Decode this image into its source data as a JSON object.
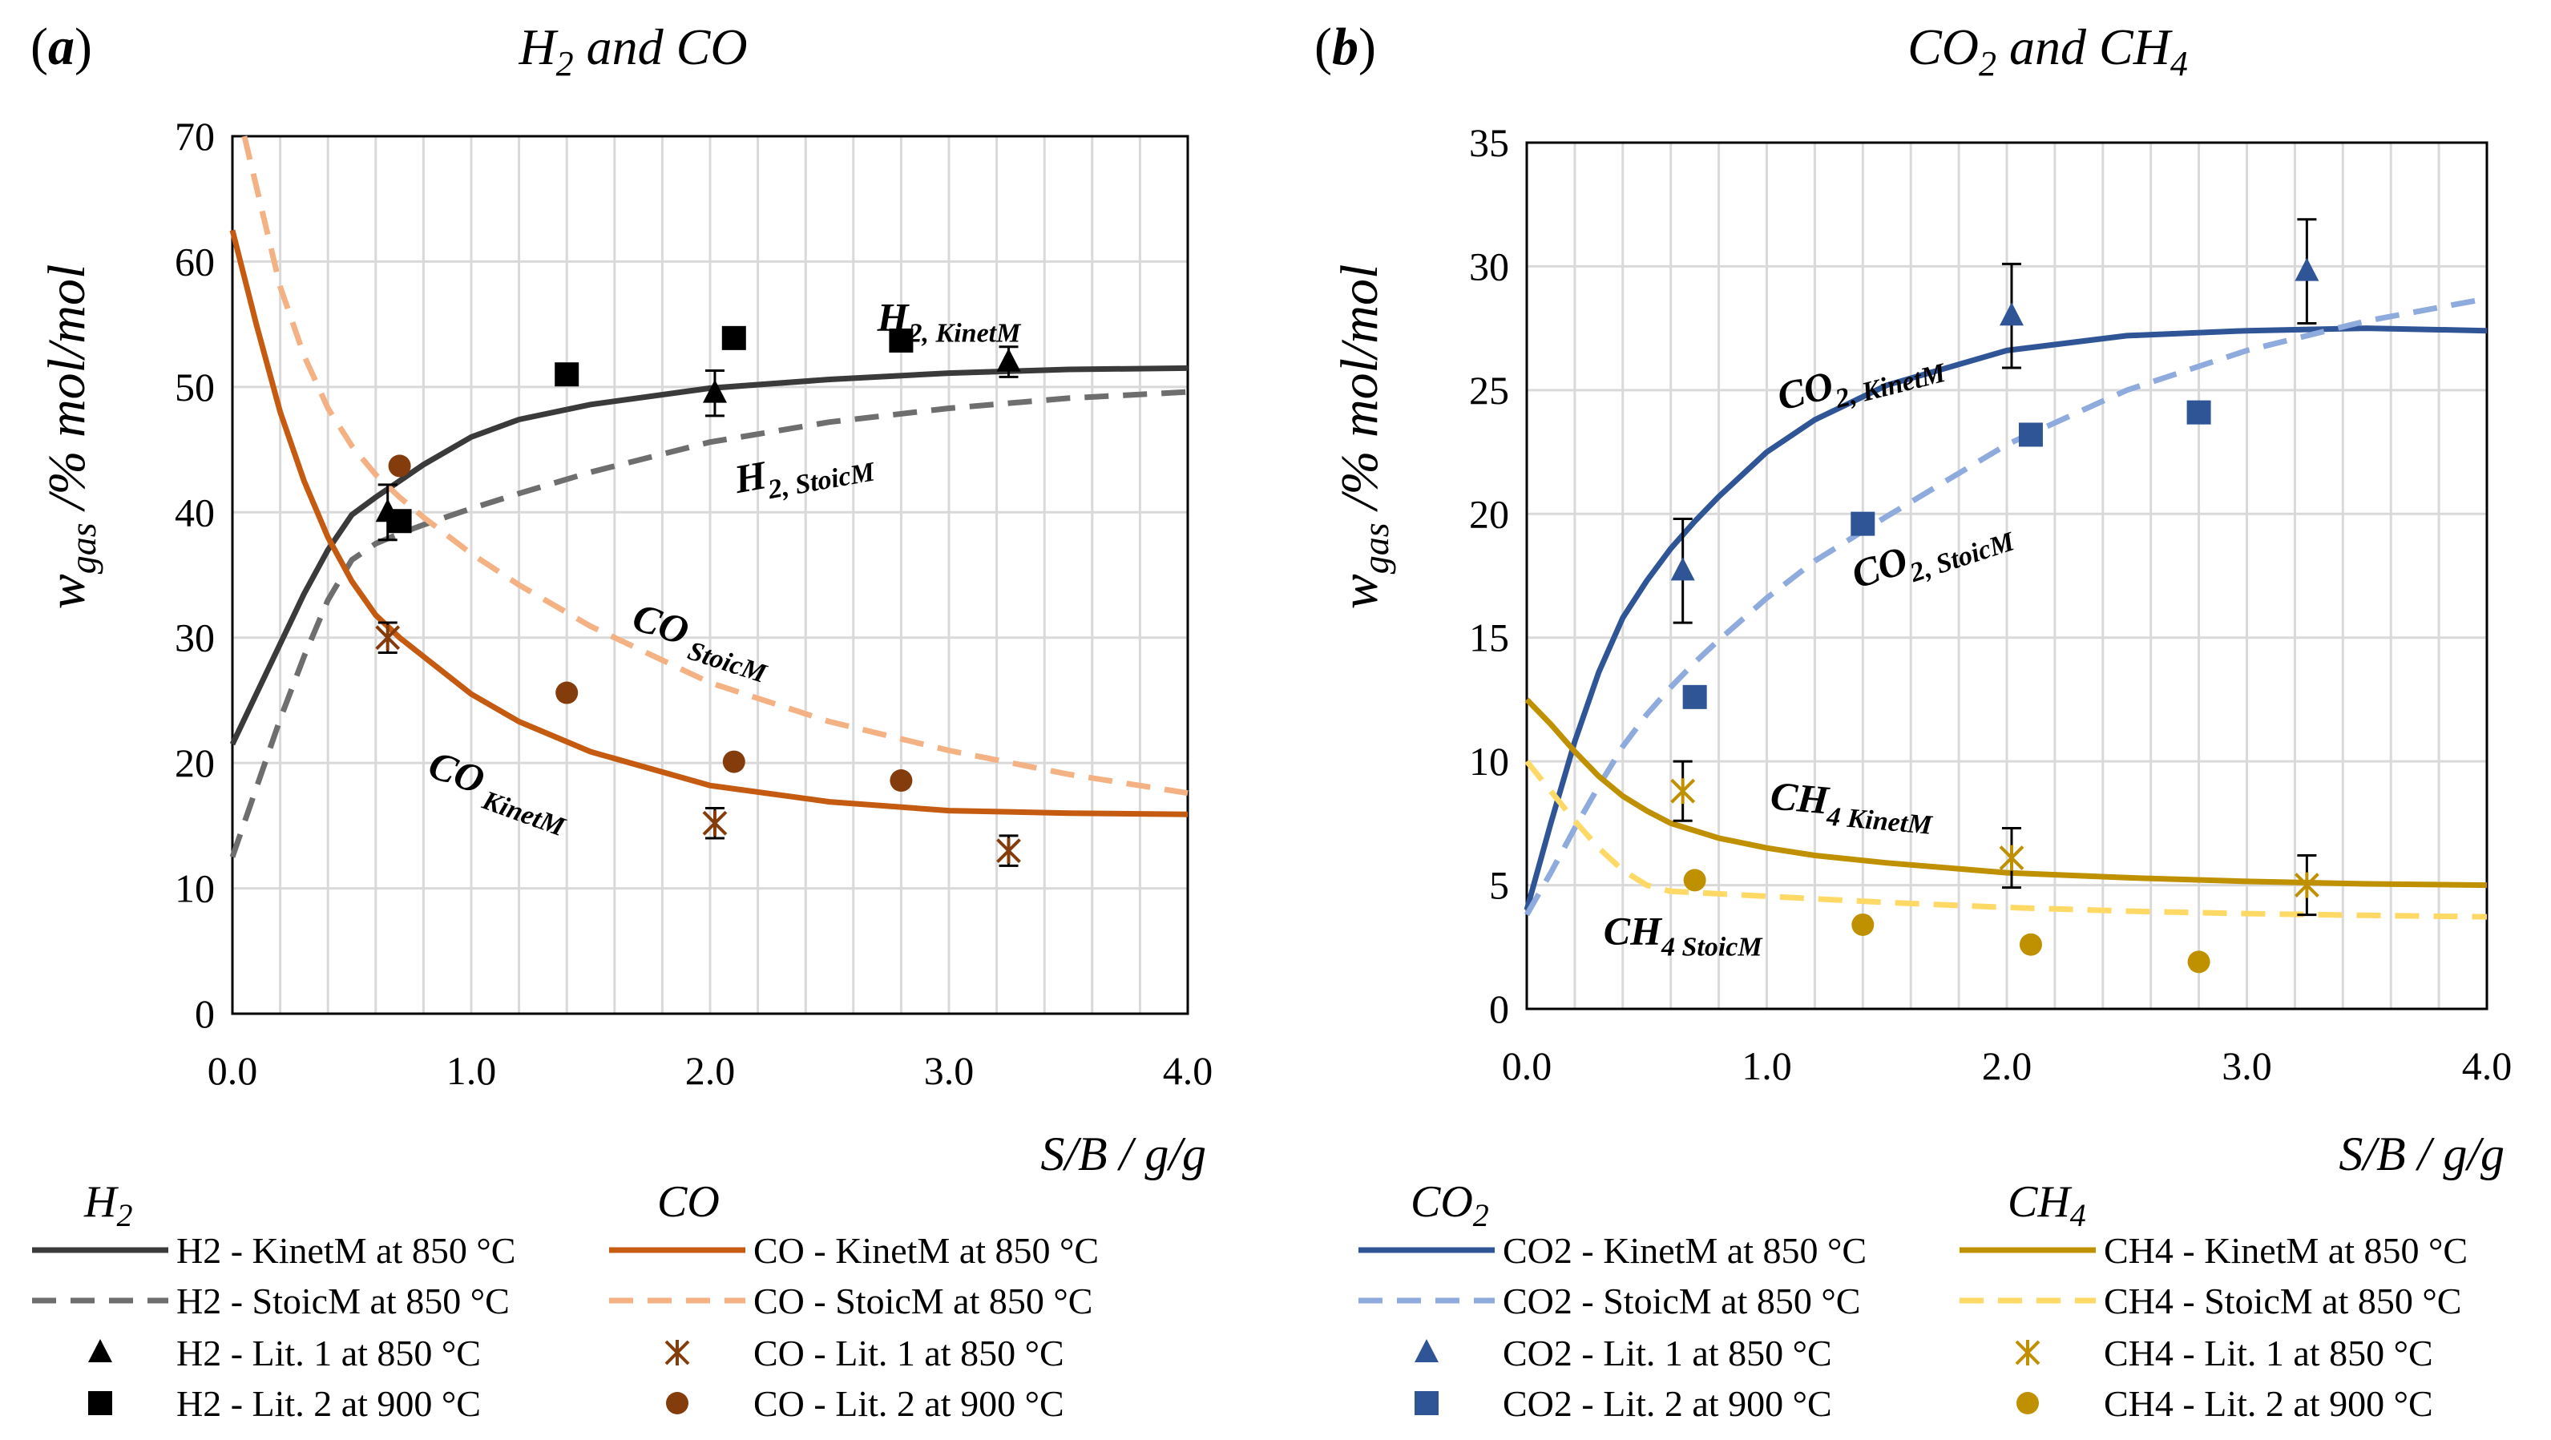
{
  "chart_data": [
    {
      "type": "line",
      "panel_label": "a",
      "title": "H",
      "title_sub": "2",
      "title_rest": " and CO",
      "xlabel": "S/B  /  g/g",
      "ylabel": "w",
      "ylabel_sub": "gas",
      "ylabel_rest": "  /% mol/mol",
      "xlim": [
        0.0,
        4.0
      ],
      "ylim": [
        0,
        70
      ],
      "xticks": [
        "0.0",
        "1.0",
        "2.0",
        "3.0",
        "4.0"
      ],
      "yticks": [
        "0",
        "10",
        "20",
        "30",
        "40",
        "50",
        "60",
        "70"
      ],
      "grid": true,
      "series": [
        {
          "name": "H2 - KinetM at 850 °C",
          "kind": "line",
          "dash": "solid",
          "color": "#3a3a3a",
          "x": [
            0.0,
            0.1,
            0.2,
            0.3,
            0.4,
            0.5,
            0.6,
            0.7,
            0.8,
            1.0,
            1.2,
            1.5,
            2.0,
            2.5,
            3.0,
            3.5,
            4.0
          ],
          "y": [
            21.5,
            25.5,
            29.5,
            33.5,
            37.0,
            39.8,
            41.2,
            42.5,
            43.8,
            46.0,
            47.4,
            48.6,
            49.9,
            50.6,
            51.1,
            51.4,
            51.5
          ]
        },
        {
          "name": "H2 - StoicM at 850 °C",
          "kind": "line",
          "dash": "dashed",
          "color": "#6e6e6e",
          "x": [
            0.0,
            0.1,
            0.2,
            0.3,
            0.4,
            0.5,
            0.6,
            0.7,
            0.8,
            1.0,
            1.2,
            1.5,
            2.0,
            2.5,
            3.0,
            3.5,
            4.0
          ],
          "y": [
            12.5,
            18.0,
            23.5,
            28.5,
            33.0,
            36.2,
            37.5,
            38.3,
            39.0,
            40.3,
            41.5,
            43.2,
            45.6,
            47.2,
            48.3,
            49.1,
            49.6
          ]
        },
        {
          "name": "CO - KinetM at 850 °C",
          "kind": "line",
          "dash": "solid",
          "color": "#c55a11",
          "x": [
            0.0,
            0.1,
            0.2,
            0.3,
            0.4,
            0.5,
            0.6,
            0.7,
            0.8,
            1.0,
            1.2,
            1.5,
            2.0,
            2.5,
            3.0,
            3.5,
            4.0
          ],
          "y": [
            62.5,
            55.0,
            48.0,
            42.5,
            38.0,
            34.5,
            31.8,
            30.0,
            28.5,
            25.5,
            23.3,
            20.9,
            18.2,
            16.9,
            16.2,
            16.0,
            15.9
          ]
        },
        {
          "name": "CO - StoicM at 850 °C",
          "kind": "line",
          "dash": "dashed",
          "color": "#f4b183",
          "x": [
            0.05,
            0.1,
            0.2,
            0.3,
            0.4,
            0.5,
            0.6,
            0.7,
            0.8,
            1.0,
            1.2,
            1.5,
            2.0,
            2.5,
            3.0,
            3.5,
            4.0
          ],
          "y": [
            70.0,
            66.0,
            58.0,
            52.5,
            48.3,
            45.3,
            43.0,
            41.2,
            39.6,
            36.7,
            34.2,
            30.9,
            26.4,
            23.3,
            21.0,
            19.1,
            17.6
          ]
        },
        {
          "name": "H2 - Lit. 1 at 850 °C",
          "kind": "marker",
          "marker": "triangle",
          "color": "#000000",
          "x": [
            0.65,
            2.02,
            3.25
          ],
          "y": [
            40.0,
            49.5,
            52.0
          ],
          "err": [
            2.2,
            1.8,
            1.2
          ]
        },
        {
          "name": "H2 - Lit. 2 at 900 °C",
          "kind": "marker",
          "marker": "square",
          "color": "#000000",
          "x": [
            0.7,
            1.4,
            2.1,
            2.8
          ],
          "y": [
            39.3,
            51.0,
            53.9,
            53.7
          ]
        },
        {
          "name": "CO - Lit. 1 at 850 °C",
          "kind": "marker",
          "marker": "star",
          "color": "#843c0c",
          "x": [
            0.65,
            2.02,
            3.25
          ],
          "y": [
            30.0,
            15.2,
            13.0
          ],
          "err": [
            1.2,
            1.2,
            1.2
          ]
        },
        {
          "name": "CO - Lit. 2 at 900 °C",
          "kind": "marker",
          "marker": "circle",
          "color": "#843c0c",
          "x": [
            0.7,
            1.4,
            2.1,
            2.8
          ],
          "y": [
            43.7,
            25.6,
            20.1,
            18.6
          ]
        }
      ],
      "annotations": [
        {
          "base": "H",
          "sub": "2, KinetM",
          "x": 3.0,
          "y": 54.5,
          "rot": 0
        },
        {
          "base": "H",
          "sub": "2, StoicM",
          "x": 2.4,
          "y": 42.5,
          "rot": -10
        },
        {
          "base": "CO",
          "sub": " StoicM",
          "x": 1.95,
          "y": 29.0,
          "rot": 18
        },
        {
          "base": "CO",
          "sub": " KinetM",
          "x": 1.1,
          "y": 17.0,
          "rot": 20
        }
      ],
      "legend": {
        "left_header": "H",
        "left_header_sub": "2",
        "right_header": "CO",
        "left_items": [
          0,
          1,
          4,
          5
        ],
        "right_items": [
          2,
          3,
          6,
          7
        ]
      }
    },
    {
      "type": "line",
      "panel_label": "b",
      "title": "CO",
      "title_sub": "2",
      "title_mid": " and CH",
      "title_sub2": "4",
      "xlabel": "S/B  /  g/g",
      "ylabel": "w",
      "ylabel_sub": "gas",
      "ylabel_rest": "  /% mol/mol",
      "xlim": [
        0.0,
        4.0
      ],
      "ylim": [
        0,
        35
      ],
      "xticks": [
        "0.0",
        "1.0",
        "2.0",
        "3.0",
        "4.0"
      ],
      "yticks": [
        "0",
        "5",
        "10",
        "15",
        "20",
        "25",
        "30",
        "35"
      ],
      "grid": true,
      "series": [
        {
          "name": "CO2 - KinetM at 850 °C",
          "kind": "line",
          "dash": "solid",
          "color": "#2f5597",
          "x": [
            0.0,
            0.1,
            0.2,
            0.3,
            0.4,
            0.5,
            0.6,
            0.7,
            0.8,
            1.0,
            1.2,
            1.5,
            2.0,
            2.5,
            3.0,
            3.5,
            4.0
          ],
          "y": [
            4.0,
            7.5,
            10.8,
            13.6,
            15.8,
            17.3,
            18.6,
            19.7,
            20.7,
            22.5,
            23.8,
            25.2,
            26.6,
            27.2,
            27.4,
            27.5,
            27.4
          ]
        },
        {
          "name": "CO2 - StoicM at 850 °C",
          "kind": "line",
          "dash": "dashed",
          "color": "#8faadc",
          "x": [
            0.0,
            0.1,
            0.2,
            0.3,
            0.4,
            0.5,
            0.6,
            0.7,
            0.8,
            1.0,
            1.2,
            1.5,
            2.0,
            2.5,
            3.0,
            3.5,
            4.0
          ],
          "y": [
            3.8,
            5.5,
            7.3,
            9.0,
            10.6,
            11.9,
            13.0,
            14.0,
            14.9,
            16.6,
            18.1,
            19.9,
            22.8,
            25.0,
            26.6,
            27.8,
            28.7
          ]
        },
        {
          "name": "CH4 - KinetM at 850 °C",
          "kind": "line",
          "dash": "solid",
          "color": "#bf9000",
          "x": [
            0.0,
            0.1,
            0.2,
            0.3,
            0.4,
            0.5,
            0.6,
            0.7,
            0.8,
            1.0,
            1.2,
            1.5,
            2.0,
            2.5,
            3.0,
            3.5,
            4.0
          ],
          "y": [
            12.5,
            11.5,
            10.4,
            9.4,
            8.6,
            8.0,
            7.5,
            7.2,
            6.9,
            6.5,
            6.2,
            5.9,
            5.5,
            5.3,
            5.15,
            5.05,
            5.0
          ]
        },
        {
          "name": "CH4 - StoicM at 850 °C",
          "kind": "line",
          "dash": "dashed",
          "color": "#ffd966",
          "x": [
            0.0,
            0.1,
            0.2,
            0.3,
            0.4,
            0.5,
            0.6,
            0.7,
            0.8,
            1.0,
            1.2,
            1.5,
            2.0,
            2.5,
            3.0,
            3.5,
            4.0
          ],
          "y": [
            10.0,
            8.8,
            7.6,
            6.5,
            5.6,
            5.0,
            4.75,
            4.7,
            4.65,
            4.55,
            4.45,
            4.3,
            4.1,
            3.95,
            3.85,
            3.78,
            3.72
          ]
        },
        {
          "name": "CO2 - Lit. 1 at 850 °C",
          "kind": "marker",
          "marker": "triangle",
          "color": "#2f5597",
          "x": [
            0.65,
            2.02,
            3.25
          ],
          "y": [
            17.7,
            28.0,
            29.8
          ],
          "err": [
            2.1,
            2.1,
            2.1
          ]
        },
        {
          "name": "CO2 - Lit. 2 at 900 °C",
          "kind": "marker",
          "marker": "square",
          "color": "#2f5597",
          "x": [
            0.7,
            1.4,
            2.1,
            2.8
          ],
          "y": [
            12.6,
            19.6,
            23.2,
            24.1
          ]
        },
        {
          "name": "CH4 - Lit. 1 at 850 °C",
          "kind": "marker",
          "marker": "star",
          "color": "#bf9000",
          "x": [
            0.65,
            2.02,
            3.25
          ],
          "y": [
            8.8,
            6.1,
            5.0
          ],
          "err": [
            1.2,
            1.2,
            1.2
          ]
        },
        {
          "name": "CH4 - Lit. 2 at 900 °C",
          "kind": "marker",
          "marker": "circle",
          "color": "#bf9000",
          "x": [
            0.7,
            1.4,
            2.1,
            2.8
          ],
          "y": [
            5.2,
            3.4,
            2.6,
            1.9
          ]
        }
      ],
      "annotations": [
        {
          "base": "CO",
          "sub": "2, KinetM",
          "x": 1.4,
          "y": 25.0,
          "rot": -14
        },
        {
          "base": "CO",
          "sub": "2, StoicM",
          "x": 1.7,
          "y": 18.0,
          "rot": -18
        },
        {
          "base": "CH",
          "sub": "4  KinetM",
          "x": 1.35,
          "y": 7.8,
          "rot": 5
        },
        {
          "base": "CH",
          "sub": "4  StoicM",
          "x": 0.65,
          "y": 2.6,
          "rot": 0
        }
      ],
      "legend": {
        "left_header": "CO",
        "left_header_sub": "2",
        "right_header": "CH",
        "right_header_sub": "4",
        "left_items": [
          0,
          1,
          4,
          5
        ],
        "right_items": [
          2,
          3,
          6,
          7
        ]
      }
    }
  ]
}
